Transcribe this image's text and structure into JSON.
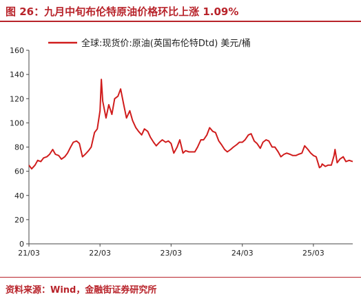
{
  "title": "图 26：九月中旬布伦特原油价格环比上涨 1.09%",
  "source": "资料来源：Wind，金融街证券研究所",
  "colors": {
    "accent": "#b8232a",
    "series": "#d01c1c"
  },
  "chart_data": {
    "type": "line",
    "xlabel": "",
    "ylabel": "",
    "ylim": [
      0,
      160
    ],
    "yticks": [
      0,
      20,
      40,
      60,
      80,
      100,
      120,
      140,
      160
    ],
    "xticks": [
      "21/03",
      "22/03",
      "23/03",
      "24/03",
      "25/03"
    ],
    "xlim": [
      "2021-03-01",
      "2025-09-19"
    ],
    "grid": false,
    "legend_position": "top",
    "series": [
      {
        "name": "全球:现货价:原油(英国布伦特Dtd) 美元/桶",
        "x": [
          "2021-03-01",
          "2021-03-15",
          "2021-04-01",
          "2021-04-15",
          "2021-05-01",
          "2021-05-15",
          "2021-06-01",
          "2021-06-15",
          "2021-07-01",
          "2021-07-15",
          "2021-08-01",
          "2021-08-15",
          "2021-09-01",
          "2021-09-15",
          "2021-10-01",
          "2021-10-15",
          "2021-11-01",
          "2021-11-15",
          "2021-12-01",
          "2021-12-15",
          "2022-01-01",
          "2022-01-15",
          "2022-02-01",
          "2022-02-15",
          "2022-03-01",
          "2022-03-08",
          "2022-03-15",
          "2022-04-01",
          "2022-04-15",
          "2022-05-01",
          "2022-05-15",
          "2022-06-01",
          "2022-06-15",
          "2022-07-01",
          "2022-07-15",
          "2022-08-01",
          "2022-08-15",
          "2022-09-01",
          "2022-09-15",
          "2022-10-01",
          "2022-10-15",
          "2022-11-01",
          "2022-11-15",
          "2022-12-01",
          "2022-12-15",
          "2023-01-01",
          "2023-01-15",
          "2023-02-01",
          "2023-02-15",
          "2023-03-01",
          "2023-03-15",
          "2023-04-01",
          "2023-04-15",
          "2023-05-01",
          "2023-05-15",
          "2023-06-01",
          "2023-06-15",
          "2023-07-01",
          "2023-07-15",
          "2023-08-01",
          "2023-08-15",
          "2023-09-01",
          "2023-09-15",
          "2023-10-01",
          "2023-10-15",
          "2023-11-01",
          "2023-11-15",
          "2023-12-01",
          "2023-12-15",
          "2024-01-01",
          "2024-01-15",
          "2024-02-01",
          "2024-02-15",
          "2024-03-01",
          "2024-03-15",
          "2024-04-01",
          "2024-04-15",
          "2024-05-01",
          "2024-05-15",
          "2024-06-01",
          "2024-06-15",
          "2024-07-01",
          "2024-07-15",
          "2024-08-01",
          "2024-08-15",
          "2024-09-01",
          "2024-09-15",
          "2024-10-01",
          "2024-10-15",
          "2024-11-01",
          "2024-11-15",
          "2024-12-01",
          "2024-12-15",
          "2025-01-01",
          "2025-01-15",
          "2025-02-01",
          "2025-02-15",
          "2025-03-01",
          "2025-03-15",
          "2025-04-01",
          "2025-04-10",
          "2025-04-15",
          "2025-05-01",
          "2025-05-15",
          "2025-06-01",
          "2025-06-15",
          "2025-06-20",
          "2025-07-01",
          "2025-07-15",
          "2025-08-01",
          "2025-08-15",
          "2025-09-01",
          "2025-09-19"
        ],
        "values": [
          65,
          62,
          65,
          69,
          68,
          71,
          72,
          74,
          78,
          74,
          73,
          70,
          72,
          75,
          80,
          84,
          85,
          83,
          72,
          74,
          77,
          80,
          92,
          95,
          110,
          136,
          118,
          104,
          115,
          107,
          120,
          122,
          128,
          115,
          104,
          110,
          102,
          96,
          93,
          90,
          95,
          93,
          88,
          84,
          81,
          84,
          86,
          84,
          85,
          83,
          75,
          80,
          86,
          75,
          77,
          76,
          76,
          76,
          80,
          86,
          86,
          90,
          96,
          93,
          92,
          85,
          82,
          78,
          76,
          78,
          80,
          82,
          84,
          84,
          86,
          90,
          91,
          85,
          83,
          79,
          84,
          86,
          85,
          80,
          80,
          76,
          72,
          74,
          75,
          74,
          73,
          73,
          74,
          75,
          81,
          78,
          75,
          73,
          72,
          63,
          64,
          66,
          64,
          65,
          65,
          73,
          78,
          67,
          70,
          72,
          68,
          69,
          68
        ]
      }
    ]
  }
}
